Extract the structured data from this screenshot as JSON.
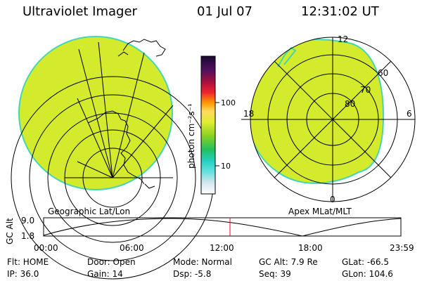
{
  "header": {
    "title": "Ultraviolet Imager",
    "date": "01 Jul 07",
    "time": "12:31:02 UT"
  },
  "colors": {
    "background": "#ffffff",
    "image_fill": "#d4ea2c",
    "image_edge": "#44d6b4",
    "red_marker": "#ff0000"
  },
  "colorbar": {
    "unit_label": "photon cm⁻²s⁻¹",
    "ticks": [
      "100",
      "10"
    ],
    "scale": "log"
  },
  "left_panel": {
    "label": "Geographic Lat/Lon"
  },
  "right_panel": {
    "label": "Apex MLat/MLT",
    "mlt_labels": [
      "12",
      "18",
      "6",
      "0"
    ],
    "lat_labels": [
      "60",
      "70",
      "80"
    ]
  },
  "timeline": {
    "axis_label": "GC Alt",
    "y_ticks": [
      "9.0",
      "1.8"
    ],
    "x_ticks": [
      "00:00",
      "06:00",
      "12:00",
      "18:00",
      "23:59"
    ],
    "marker_time": "12:31"
  },
  "status": {
    "filter": "Flt: HOME",
    "door": "Door: Open",
    "mode": "Mode: Normal",
    "gc_alt": "GC Alt: 7.9 Re",
    "glat": "GLat:  -66.5",
    "ip": "IP: 36.0",
    "gain": "Gain: 14",
    "dsp": "Dsp:    -5.8",
    "seq": "Seq: 39",
    "glon": "GLon: 104.6"
  }
}
